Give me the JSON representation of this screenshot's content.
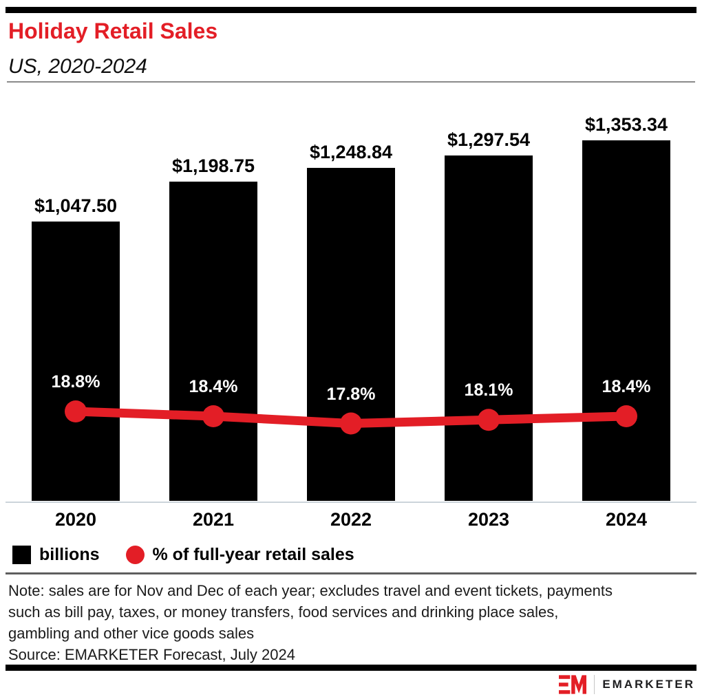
{
  "chart_data": {
    "type": "combo-bar-line",
    "title": "Holiday Retail Sales",
    "subtitle": "US, 2020-2024",
    "categories": [
      "2020",
      "2021",
      "2022",
      "2023",
      "2024"
    ],
    "series": [
      {
        "name": "billions",
        "type": "bar",
        "color": "#000000",
        "values": [
          1047.5,
          1198.75,
          1248.84,
          1297.54,
          1353.34
        ],
        "labels": [
          "$1,047.50",
          "$1,198.75",
          "$1,248.84",
          "$1,297.54",
          "$1,353.34"
        ]
      },
      {
        "name": "% of full-year retail sales",
        "type": "line",
        "color": "#e31e26",
        "values": [
          18.8,
          18.4,
          17.8,
          18.1,
          18.4
        ],
        "labels": [
          "18.8%",
          "18.4%",
          "17.8%",
          "18.1%",
          "18.4%"
        ]
      }
    ],
    "legend_position": "bottom",
    "grid": "off",
    "value_axis_visible": false
  },
  "accent": {
    "red": "#e31e26",
    "bar_black": "#000000",
    "axis_line": "#ccd4da"
  },
  "footer": {
    "note_lines": [
      "Note: sales are for Nov and Dec of each year; excludes travel and event tickets, payments",
      "such as bill pay, taxes, or money transfers, food services and drinking place sales,",
      "gambling and other vice goods sales"
    ],
    "source": "Source: EMARKETER Forecast, July 2024"
  },
  "logo": {
    "monogram": "EM",
    "wordmark": "EMARKETER"
  }
}
